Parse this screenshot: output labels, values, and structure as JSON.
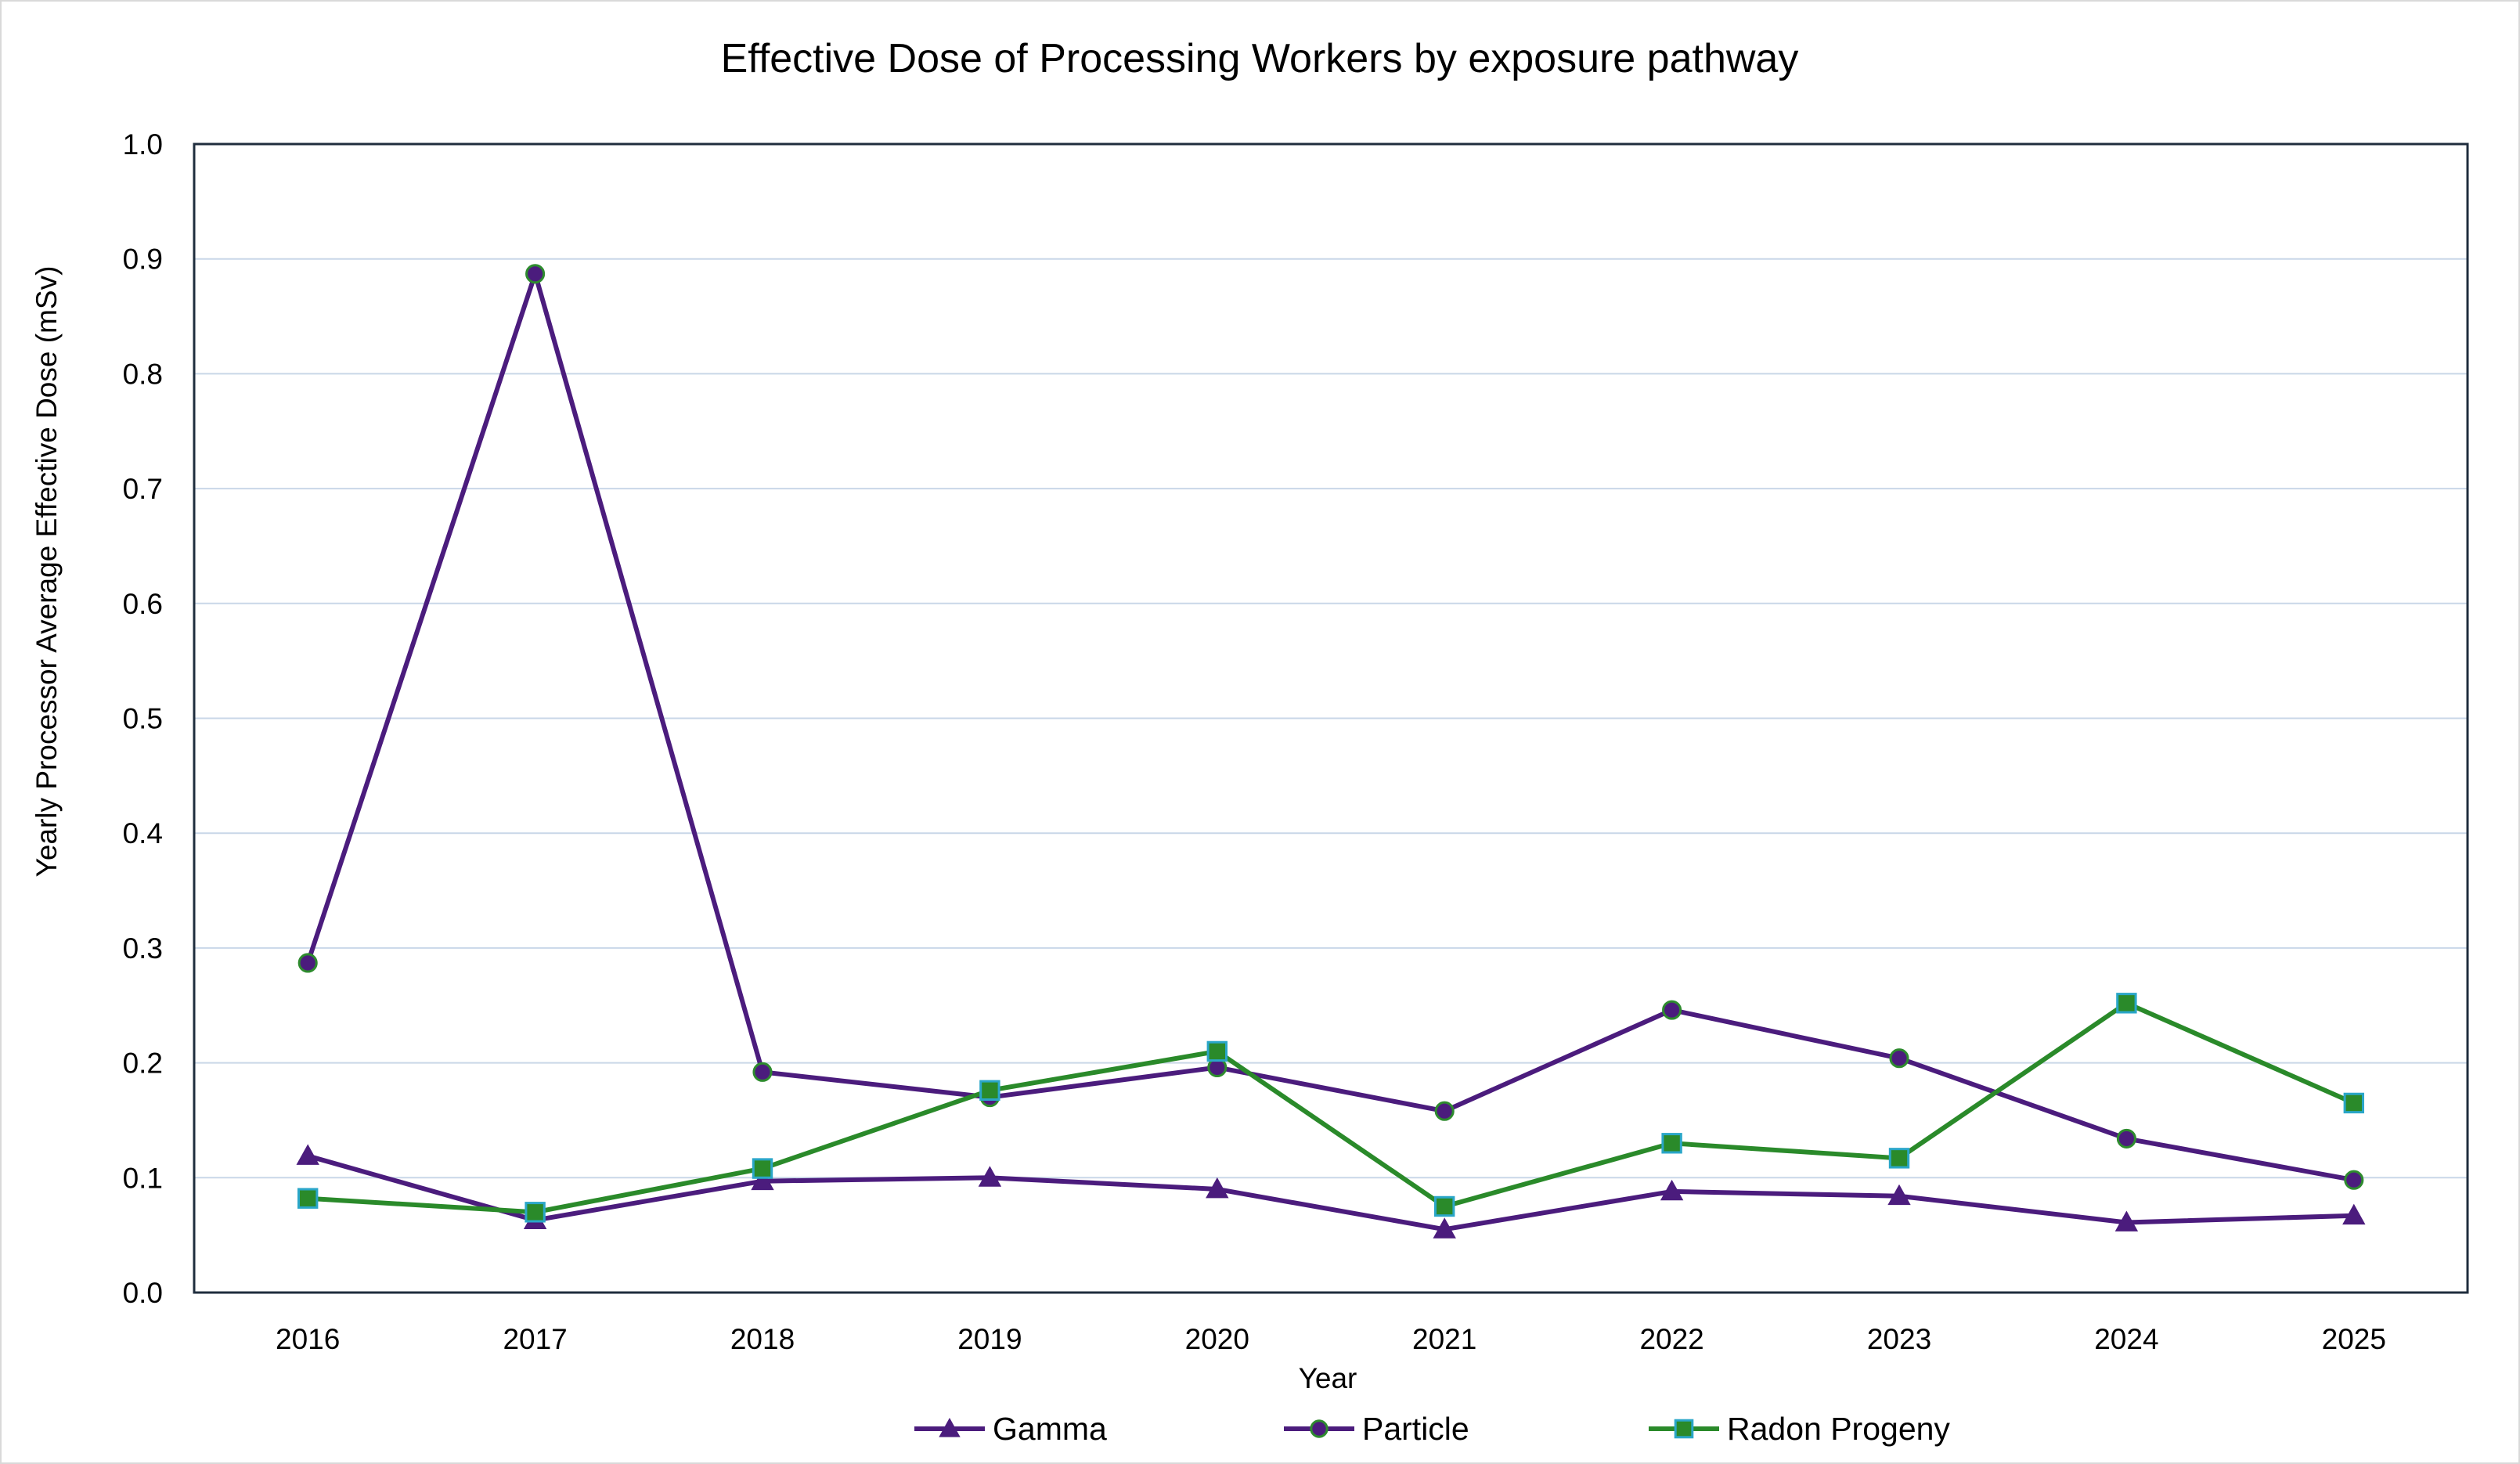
{
  "chart_data": {
    "type": "line",
    "title": "Effective Dose of Processing Workers by exposure pathway",
    "xlabel": "Year",
    "ylabel": "Yearly Processor Average Effective Dose (mSv)",
    "ylim": [
      0,
      1.0
    ],
    "yticks": [
      "0.0",
      "0.1",
      "0.2",
      "0.3",
      "0.4",
      "0.5",
      "0.6",
      "0.7",
      "0.8",
      "0.9",
      "1.0"
    ],
    "categories": [
      "2016",
      "2017",
      "2018",
      "2019",
      "2020",
      "2021",
      "2022",
      "2023",
      "2024",
      "2025"
    ],
    "grid": "horizontal",
    "legend_position": "bottom",
    "series": [
      {
        "name": "Gamma",
        "marker": "triangle",
        "line_color": "#4b1c7d",
        "marker_fill": "#4b1c7d",
        "marker_stroke": "#4b1c7d",
        "values": [
          0.119,
          0.063,
          0.097,
          0.1,
          0.09,
          0.055,
          0.088,
          0.084,
          0.061,
          0.067
        ]
      },
      {
        "name": "Particle",
        "marker": "circle",
        "line_color": "#4b1c7d",
        "marker_fill": "#4b1c7d",
        "marker_stroke": "#2e8b2e",
        "values": [
          0.287,
          0.887,
          0.192,
          0.17,
          0.196,
          0.158,
          0.246,
          0.204,
          0.134,
          0.098
        ]
      },
      {
        "name": "Radon Progeny",
        "marker": "square",
        "line_color": "#2a8a2a",
        "marker_fill": "#2a8a2a",
        "marker_stroke": "#2aa6c8",
        "values": [
          0.082,
          0.07,
          0.108,
          0.176,
          0.21,
          0.075,
          0.13,
          0.117,
          0.252,
          0.165
        ]
      }
    ]
  }
}
